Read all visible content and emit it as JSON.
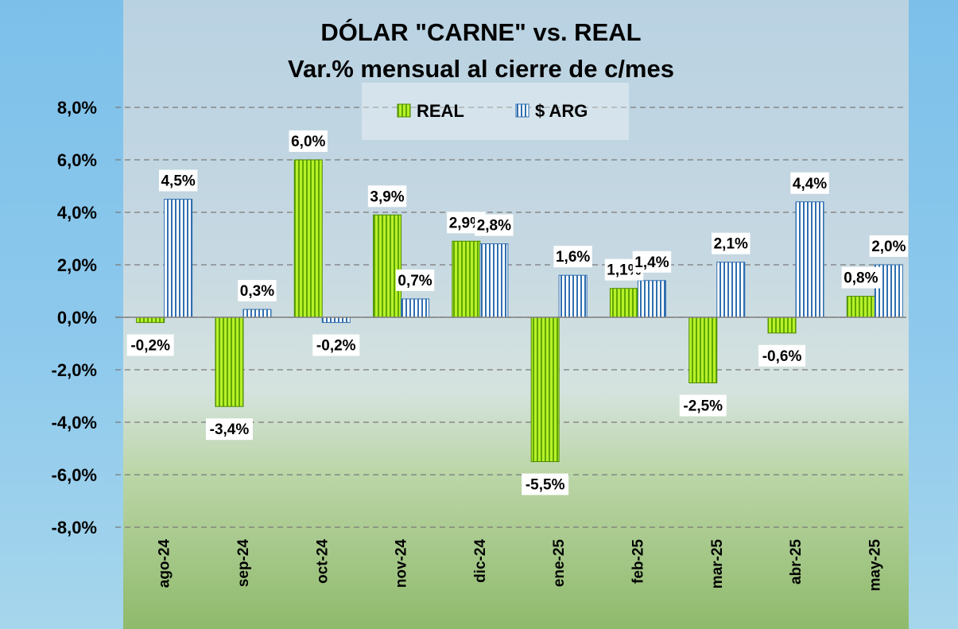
{
  "chart_data": {
    "type": "bar",
    "title": "DÓLAR \"CARNE\" vs. REAL",
    "subtitle": "Var.% mensual al cierre de c/mes",
    "categories": [
      "ago-24",
      "sep-24",
      "oct-24",
      "nov-24",
      "dic-24",
      "ene-25",
      "feb-25",
      "mar-25",
      "abr-25",
      "may-25"
    ],
    "series": [
      {
        "name": "REAL",
        "values": [
          -0.2,
          -3.4,
          6.0,
          3.9,
          2.9,
          -5.5,
          1.1,
          -2.5,
          -0.6,
          0.8
        ],
        "labels": [
          "-0,2%",
          "-3,4%",
          "6,0%",
          "3,9%",
          "2,9%",
          "-5,5%",
          "1,1%",
          "-2,5%",
          "-0,6%",
          "0,8%"
        ],
        "color": "#8fd400"
      },
      {
        "name": "$ ARG",
        "values": [
          4.5,
          0.3,
          -0.2,
          0.7,
          2.8,
          1.6,
          1.4,
          2.1,
          4.4,
          2.0
        ],
        "labels": [
          "4,5%",
          "0,3%",
          "-0,2%",
          "0,7%",
          "2,8%",
          "1,6%",
          "1,4%",
          "2,1%",
          "4,4%",
          "2,0%"
        ],
        "color": "#2f6fb0"
      }
    ],
    "ylim": [
      -8,
      8
    ],
    "yticks": [
      8,
      6,
      4,
      2,
      0,
      -2,
      -4,
      -6,
      -8
    ],
    "ytick_labels": [
      "8,0%",
      "6,0%",
      "4,0%",
      "2,0%",
      "0,0%",
      "-2,0%",
      "-4,0%",
      "-6,0%",
      "-8,0%"
    ],
    "grid": true,
    "legend_position": "top-center"
  }
}
